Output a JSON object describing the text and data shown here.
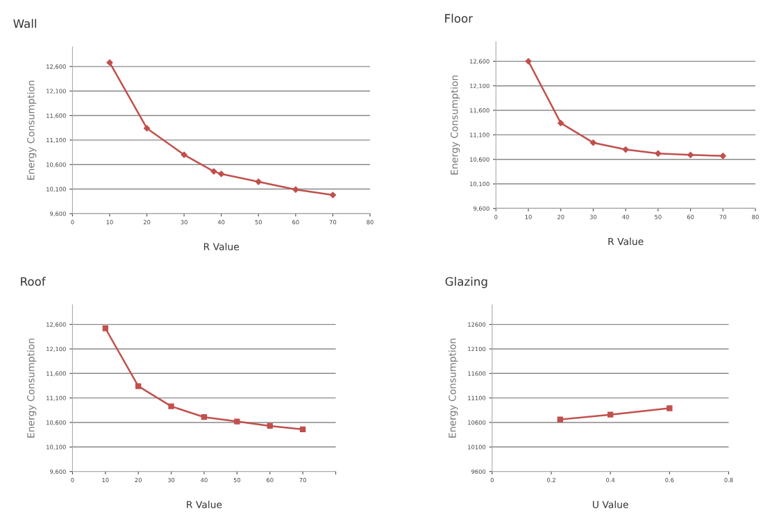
{
  "chart_data": [
    {
      "type": "line",
      "title": "Wall",
      "xlabel": "R Value",
      "ylabel": "Energy Consumption",
      "x": [
        10,
        20,
        30,
        38,
        40,
        50,
        60,
        70
      ],
      "series": [
        {
          "color": "#c0504d",
          "values": [
            12680,
            11340,
            10800,
            10460,
            10410,
            10250,
            10090,
            9980
          ]
        }
      ],
      "marker": "diamond",
      "line_style": "solid",
      "grid": "y",
      "xlim": [
        0,
        80
      ],
      "xticks": [
        0,
        10,
        20,
        30,
        40,
        50,
        60,
        70,
        80
      ],
      "ylim": [
        9600,
        13000
      ],
      "yticks": [
        {
          "value": 9600,
          "label": "9,600"
        },
        {
          "value": 10100,
          "label": "10,100"
        },
        {
          "value": 10600,
          "label": "10,600"
        },
        {
          "value": 11100,
          "label": "11,100"
        },
        {
          "value": 11600,
          "label": "11,600"
        },
        {
          "value": 12100,
          "label": "12,100"
        },
        {
          "value": 12600,
          "label": "12,600"
        }
      ]
    },
    {
      "type": "line",
      "title": "Floor",
      "xlabel": "R Value",
      "ylabel": "Energy Consumption",
      "x": [
        10,
        20,
        30,
        40,
        50,
        60,
        70
      ],
      "series": [
        {
          "color": "#c0504d",
          "values": [
            12600,
            11340,
            10940,
            10800,
            10720,
            10690,
            10670
          ]
        }
      ],
      "marker": "diamond",
      "line_style": "solid",
      "grid": "y",
      "xlim": [
        0,
        80
      ],
      "xticks": [
        0,
        10,
        20,
        30,
        40,
        50,
        60,
        70,
        80
      ],
      "ylim": [
        9600,
        13000
      ],
      "yticks": [
        {
          "value": 9600,
          "label": "9,600"
        },
        {
          "value": 10100,
          "label": "10,100"
        },
        {
          "value": 10600,
          "label": "10,600"
        },
        {
          "value": 11100,
          "label": "11,100"
        },
        {
          "value": 11600,
          "label": "11,600"
        },
        {
          "value": 12100,
          "label": "12,100"
        },
        {
          "value": 12600,
          "label": "12,600"
        }
      ]
    },
    {
      "type": "line",
      "title": "Roof",
      "xlabel": "R Value",
      "ylabel": "Energy Consumption",
      "x": [
        10,
        20,
        30,
        40,
        50,
        60,
        70
      ],
      "series": [
        {
          "color": "#c0504d",
          "values": [
            12520,
            11340,
            10930,
            10710,
            10620,
            10530,
            10460
          ]
        }
      ],
      "marker": "square",
      "line_style": "solid",
      "grid": "y",
      "xlim": [
        0,
        80
      ],
      "xticks": [
        0,
        10,
        20,
        30,
        40,
        50,
        60,
        70,
        {
          "value": 80,
          "label": null
        }
      ],
      "ylim": [
        9600,
        13000
      ],
      "yticks": [
        {
          "value": 9600,
          "label": "9,600"
        },
        {
          "value": 10100,
          "label": "10,100"
        },
        {
          "value": 10600,
          "label": "10,600"
        },
        {
          "value": 11100,
          "label": "11,100"
        },
        {
          "value": 11600,
          "label": "11,600"
        },
        {
          "value": 12100,
          "label": "12,100"
        },
        {
          "value": 12600,
          "label": "12,600"
        }
      ]
    },
    {
      "type": "line",
      "title": "Glazing",
      "xlabel": "U Value",
      "ylabel": "Energy Consumption",
      "x": [
        0.23,
        0.4,
        0.6
      ],
      "series": [
        {
          "color": "#c0504d",
          "values": [
            10660,
            10760,
            10890
          ]
        }
      ],
      "marker": "square",
      "line_style": "solid",
      "grid": "y",
      "xlim": [
        0,
        0.8
      ],
      "xticks": [
        0,
        0.2,
        0.4,
        0.6,
        0.8
      ],
      "ylim": [
        9600,
        13000
      ],
      "yticks": [
        9600,
        10100,
        10600,
        11100,
        11600,
        12100,
        12600
      ]
    }
  ]
}
